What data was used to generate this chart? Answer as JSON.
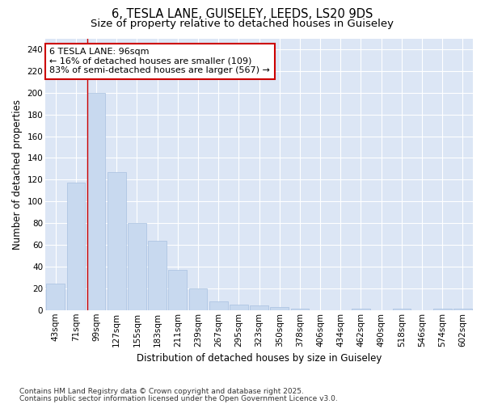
{
  "title_line1": "6, TESLA LANE, GUISELEY, LEEDS, LS20 9DS",
  "title_line2": "Size of property relative to detached houses in Guiseley",
  "xlabel": "Distribution of detached houses by size in Guiseley",
  "ylabel": "Number of detached properties",
  "categories": [
    "43sqm",
    "71sqm",
    "99sqm",
    "127sqm",
    "155sqm",
    "183sqm",
    "211sqm",
    "239sqm",
    "267sqm",
    "295sqm",
    "323sqm",
    "350sqm",
    "378sqm",
    "406sqm",
    "434sqm",
    "462sqm",
    "490sqm",
    "518sqm",
    "546sqm",
    "574sqm",
    "602sqm"
  ],
  "values": [
    24,
    117,
    200,
    127,
    80,
    64,
    37,
    20,
    8,
    5,
    4,
    3,
    1,
    0,
    0,
    1,
    0,
    1,
    0,
    1,
    1
  ],
  "bar_color": "#c8d9ef",
  "bar_edge_color": "#a8c0e0",
  "annotation_text": "6 TESLA LANE: 96sqm\n← 16% of detached houses are smaller (109)\n83% of semi-detached houses are larger (567) →",
  "annotation_box_facecolor": "#ffffff",
  "annotation_box_edgecolor": "#cc0000",
  "vline_color": "#cc0000",
  "ylim": [
    0,
    250
  ],
  "yticks": [
    0,
    20,
    40,
    60,
    80,
    100,
    120,
    140,
    160,
    180,
    200,
    220,
    240
  ],
  "background_color": "#dce6f5",
  "grid_color": "#ffffff",
  "footer_line1": "Contains HM Land Registry data © Crown copyright and database right 2025.",
  "footer_line2": "Contains public sector information licensed under the Open Government Licence v3.0.",
  "title_fontsize": 10.5,
  "subtitle_fontsize": 9.5,
  "axis_label_fontsize": 8.5,
  "tick_fontsize": 7.5,
  "annotation_fontsize": 8,
  "footer_fontsize": 6.5
}
